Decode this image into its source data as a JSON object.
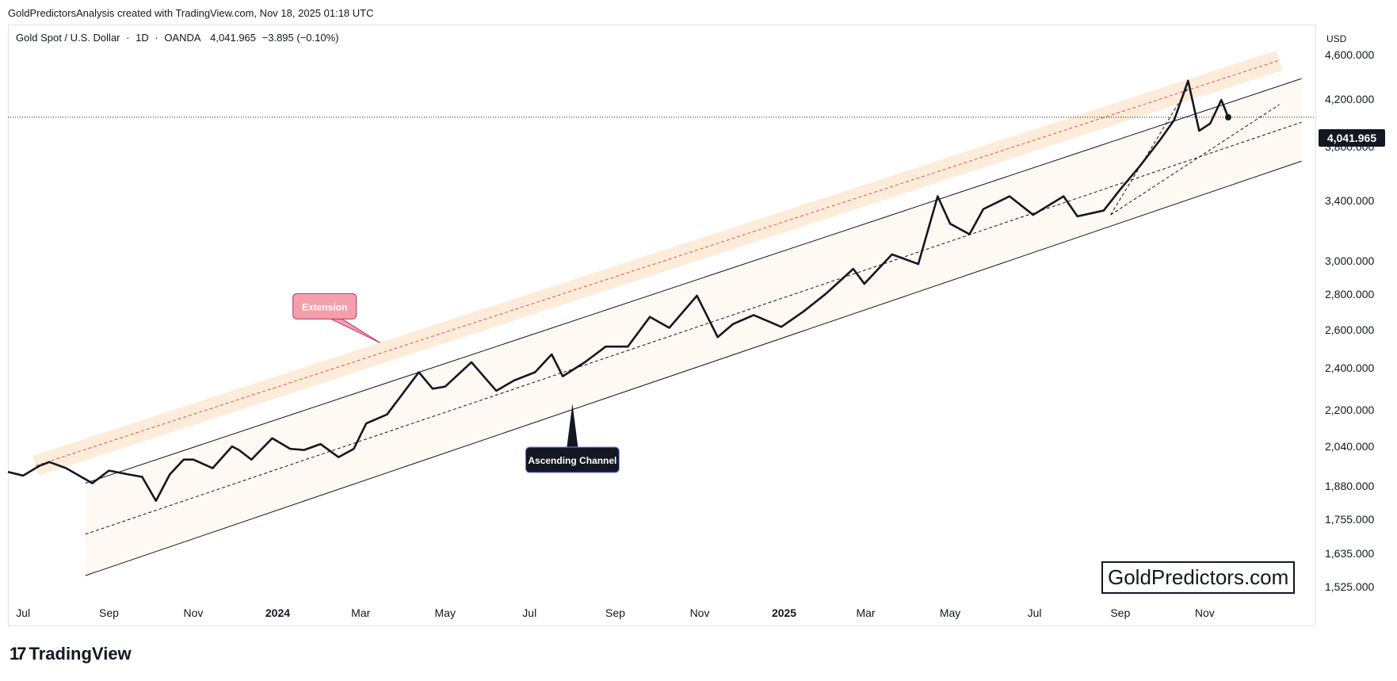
{
  "attribution": "GoldPredictorsAnalysis created with TradingView.com, Nov 18, 2025 01:18 UTC",
  "symbol": {
    "name": "Gold Spot / U.S. Dollar",
    "interval": "1D",
    "source": "OANDA",
    "last": "4,041.965",
    "change": "−3.895 (−0.10%)"
  },
  "price_axis": {
    "currency": "USD",
    "last_price_label": "4,041.965"
  },
  "watermark": "GoldPredictors.com",
  "branding": "TradingView",
  "colors": {
    "price_line": "#131722",
    "channel_line": "#131722",
    "extension_band": "#fde0c2",
    "extension_line": "#e05050",
    "extension_callout": "#f4a0ac",
    "channel_callout": "#131722"
  },
  "chart_data": {
    "type": "line",
    "title": "Gold Spot / U.S. Dollar · 1D · OANDA",
    "ylabel": "USD",
    "y_scale": "log",
    "ylim": [
      1480,
      4900
    ],
    "xlim": [
      "2023-06-20",
      "2026-01-20"
    ],
    "x_ticks": [
      {
        "date": "2023-07-01",
        "label": "Jul",
        "bold": false
      },
      {
        "date": "2023-09-01",
        "label": "Sep",
        "bold": false
      },
      {
        "date": "2023-11-01",
        "label": "Nov",
        "bold": false
      },
      {
        "date": "2024-01-01",
        "label": "2024",
        "bold": true
      },
      {
        "date": "2024-03-01",
        "label": "Mar",
        "bold": false
      },
      {
        "date": "2024-05-01",
        "label": "May",
        "bold": false
      },
      {
        "date": "2024-07-01",
        "label": "Jul",
        "bold": false
      },
      {
        "date": "2024-09-01",
        "label": "Sep",
        "bold": false
      },
      {
        "date": "2024-11-01",
        "label": "Nov",
        "bold": false
      },
      {
        "date": "2025-01-01",
        "label": "2025",
        "bold": true
      },
      {
        "date": "2025-03-01",
        "label": "Mar",
        "bold": false
      },
      {
        "date": "2025-05-01",
        "label": "May",
        "bold": false
      },
      {
        "date": "2025-07-01",
        "label": "Jul",
        "bold": false
      },
      {
        "date": "2025-09-01",
        "label": "Sep",
        "bold": false
      },
      {
        "date": "2025-11-01",
        "label": "Nov",
        "bold": false
      }
    ],
    "y_ticks": [
      {
        "value": 4600,
        "label": "4,600.000"
      },
      {
        "value": 4200,
        "label": "4,200.000"
      },
      {
        "value": 3800,
        "label": "3,800.000"
      },
      {
        "value": 3400,
        "label": "3,400.000"
      },
      {
        "value": 3000,
        "label": "3,000.000"
      },
      {
        "value": 2800,
        "label": "2,800.000"
      },
      {
        "value": 2600,
        "label": "2,600.000"
      },
      {
        "value": 2400,
        "label": "2,400.000"
      },
      {
        "value": 2200,
        "label": "2,200.000"
      },
      {
        "value": 2040,
        "label": "2,040.000"
      },
      {
        "value": 1880,
        "label": "1,880.000"
      },
      {
        "value": 1755,
        "label": "1,755.000"
      },
      {
        "value": 1635,
        "label": "1,635.000"
      },
      {
        "value": 1525,
        "label": "1,525.000"
      }
    ],
    "series": [
      {
        "points": [
          [
            "2023-06-20",
            1935
          ],
          [
            "2023-07-01",
            1920
          ],
          [
            "2023-07-13",
            1960
          ],
          [
            "2023-07-20",
            1975
          ],
          [
            "2023-08-01",
            1950
          ],
          [
            "2023-08-20",
            1890
          ],
          [
            "2023-09-01",
            1940
          ],
          [
            "2023-09-15",
            1925
          ],
          [
            "2023-09-25",
            1915
          ],
          [
            "2023-10-05",
            1822
          ],
          [
            "2023-10-15",
            1925
          ],
          [
            "2023-10-25",
            1985
          ],
          [
            "2023-11-01",
            1985
          ],
          [
            "2023-11-15",
            1950
          ],
          [
            "2023-11-29",
            2040
          ],
          [
            "2023-12-04",
            2025
          ],
          [
            "2023-12-13",
            1985
          ],
          [
            "2023-12-28",
            2075
          ],
          [
            "2024-01-10",
            2030
          ],
          [
            "2024-01-20",
            2025
          ],
          [
            "2024-02-01",
            2050
          ],
          [
            "2024-02-14",
            1995
          ],
          [
            "2024-02-25",
            2030
          ],
          [
            "2024-03-05",
            2140
          ],
          [
            "2024-03-20",
            2180
          ],
          [
            "2024-04-12",
            2380
          ],
          [
            "2024-04-22",
            2300
          ],
          [
            "2024-05-01",
            2310
          ],
          [
            "2024-05-20",
            2430
          ],
          [
            "2024-06-07",
            2290
          ],
          [
            "2024-06-20",
            2340
          ],
          [
            "2024-07-05",
            2380
          ],
          [
            "2024-07-17",
            2470
          ],
          [
            "2024-07-25",
            2360
          ],
          [
            "2024-08-10",
            2430
          ],
          [
            "2024-08-25",
            2510
          ],
          [
            "2024-09-10",
            2510
          ],
          [
            "2024-09-26",
            2670
          ],
          [
            "2024-10-10",
            2610
          ],
          [
            "2024-10-30",
            2790
          ],
          [
            "2024-11-14",
            2560
          ],
          [
            "2024-11-25",
            2630
          ],
          [
            "2024-12-10",
            2680
          ],
          [
            "2024-12-30",
            2615
          ],
          [
            "2025-01-15",
            2700
          ],
          [
            "2025-01-31",
            2800
          ],
          [
            "2025-02-20",
            2950
          ],
          [
            "2025-02-28",
            2860
          ],
          [
            "2025-03-20",
            3040
          ],
          [
            "2025-04-08",
            2980
          ],
          [
            "2025-04-22",
            3430
          ],
          [
            "2025-05-01",
            3240
          ],
          [
            "2025-05-15",
            3170
          ],
          [
            "2025-05-25",
            3340
          ],
          [
            "2025-06-13",
            3430
          ],
          [
            "2025-06-30",
            3300
          ],
          [
            "2025-07-22",
            3430
          ],
          [
            "2025-08-01",
            3290
          ],
          [
            "2025-08-20",
            3330
          ],
          [
            "2025-09-01",
            3480
          ],
          [
            "2025-09-15",
            3650
          ],
          [
            "2025-09-30",
            3860
          ],
          [
            "2025-10-10",
            4020
          ],
          [
            "2025-10-20",
            4360
          ],
          [
            "2025-10-28",
            3930
          ],
          [
            "2025-11-05",
            3990
          ],
          [
            "2025-11-13",
            4190
          ],
          [
            "2025-11-18",
            4041.965
          ]
        ]
      }
    ],
    "channel": {
      "upper": [
        [
          "2023-08-15",
          1890
        ],
        [
          "2026-01-10",
          4380
        ]
      ],
      "middle": [
        [
          "2023-08-15",
          1700
        ],
        [
          "2026-01-10",
          4000
        ]
      ],
      "lower": [
        [
          "2023-08-15",
          1560
        ],
        [
          "2026-01-10",
          3690
        ]
      ],
      "extension": [
        [
          "2023-07-10",
          1960
        ],
        [
          "2025-12-25",
          4550
        ]
      ],
      "steep_upper": [
        [
          "2025-08-25",
          3300
        ],
        [
          "2025-10-20",
          4300
        ]
      ],
      "steep_lower": [
        [
          "2025-08-25",
          3300
        ],
        [
          "2025-12-25",
          4150
        ]
      ]
    },
    "annotations": [
      {
        "text": "Extension",
        "anchor": [
          "2024-03-15",
          2530
        ],
        "style": "pink"
      },
      {
        "text": "Ascending Channel",
        "anchor": [
          "2024-08-01",
          2230
        ],
        "style": "dark"
      }
    ]
  }
}
